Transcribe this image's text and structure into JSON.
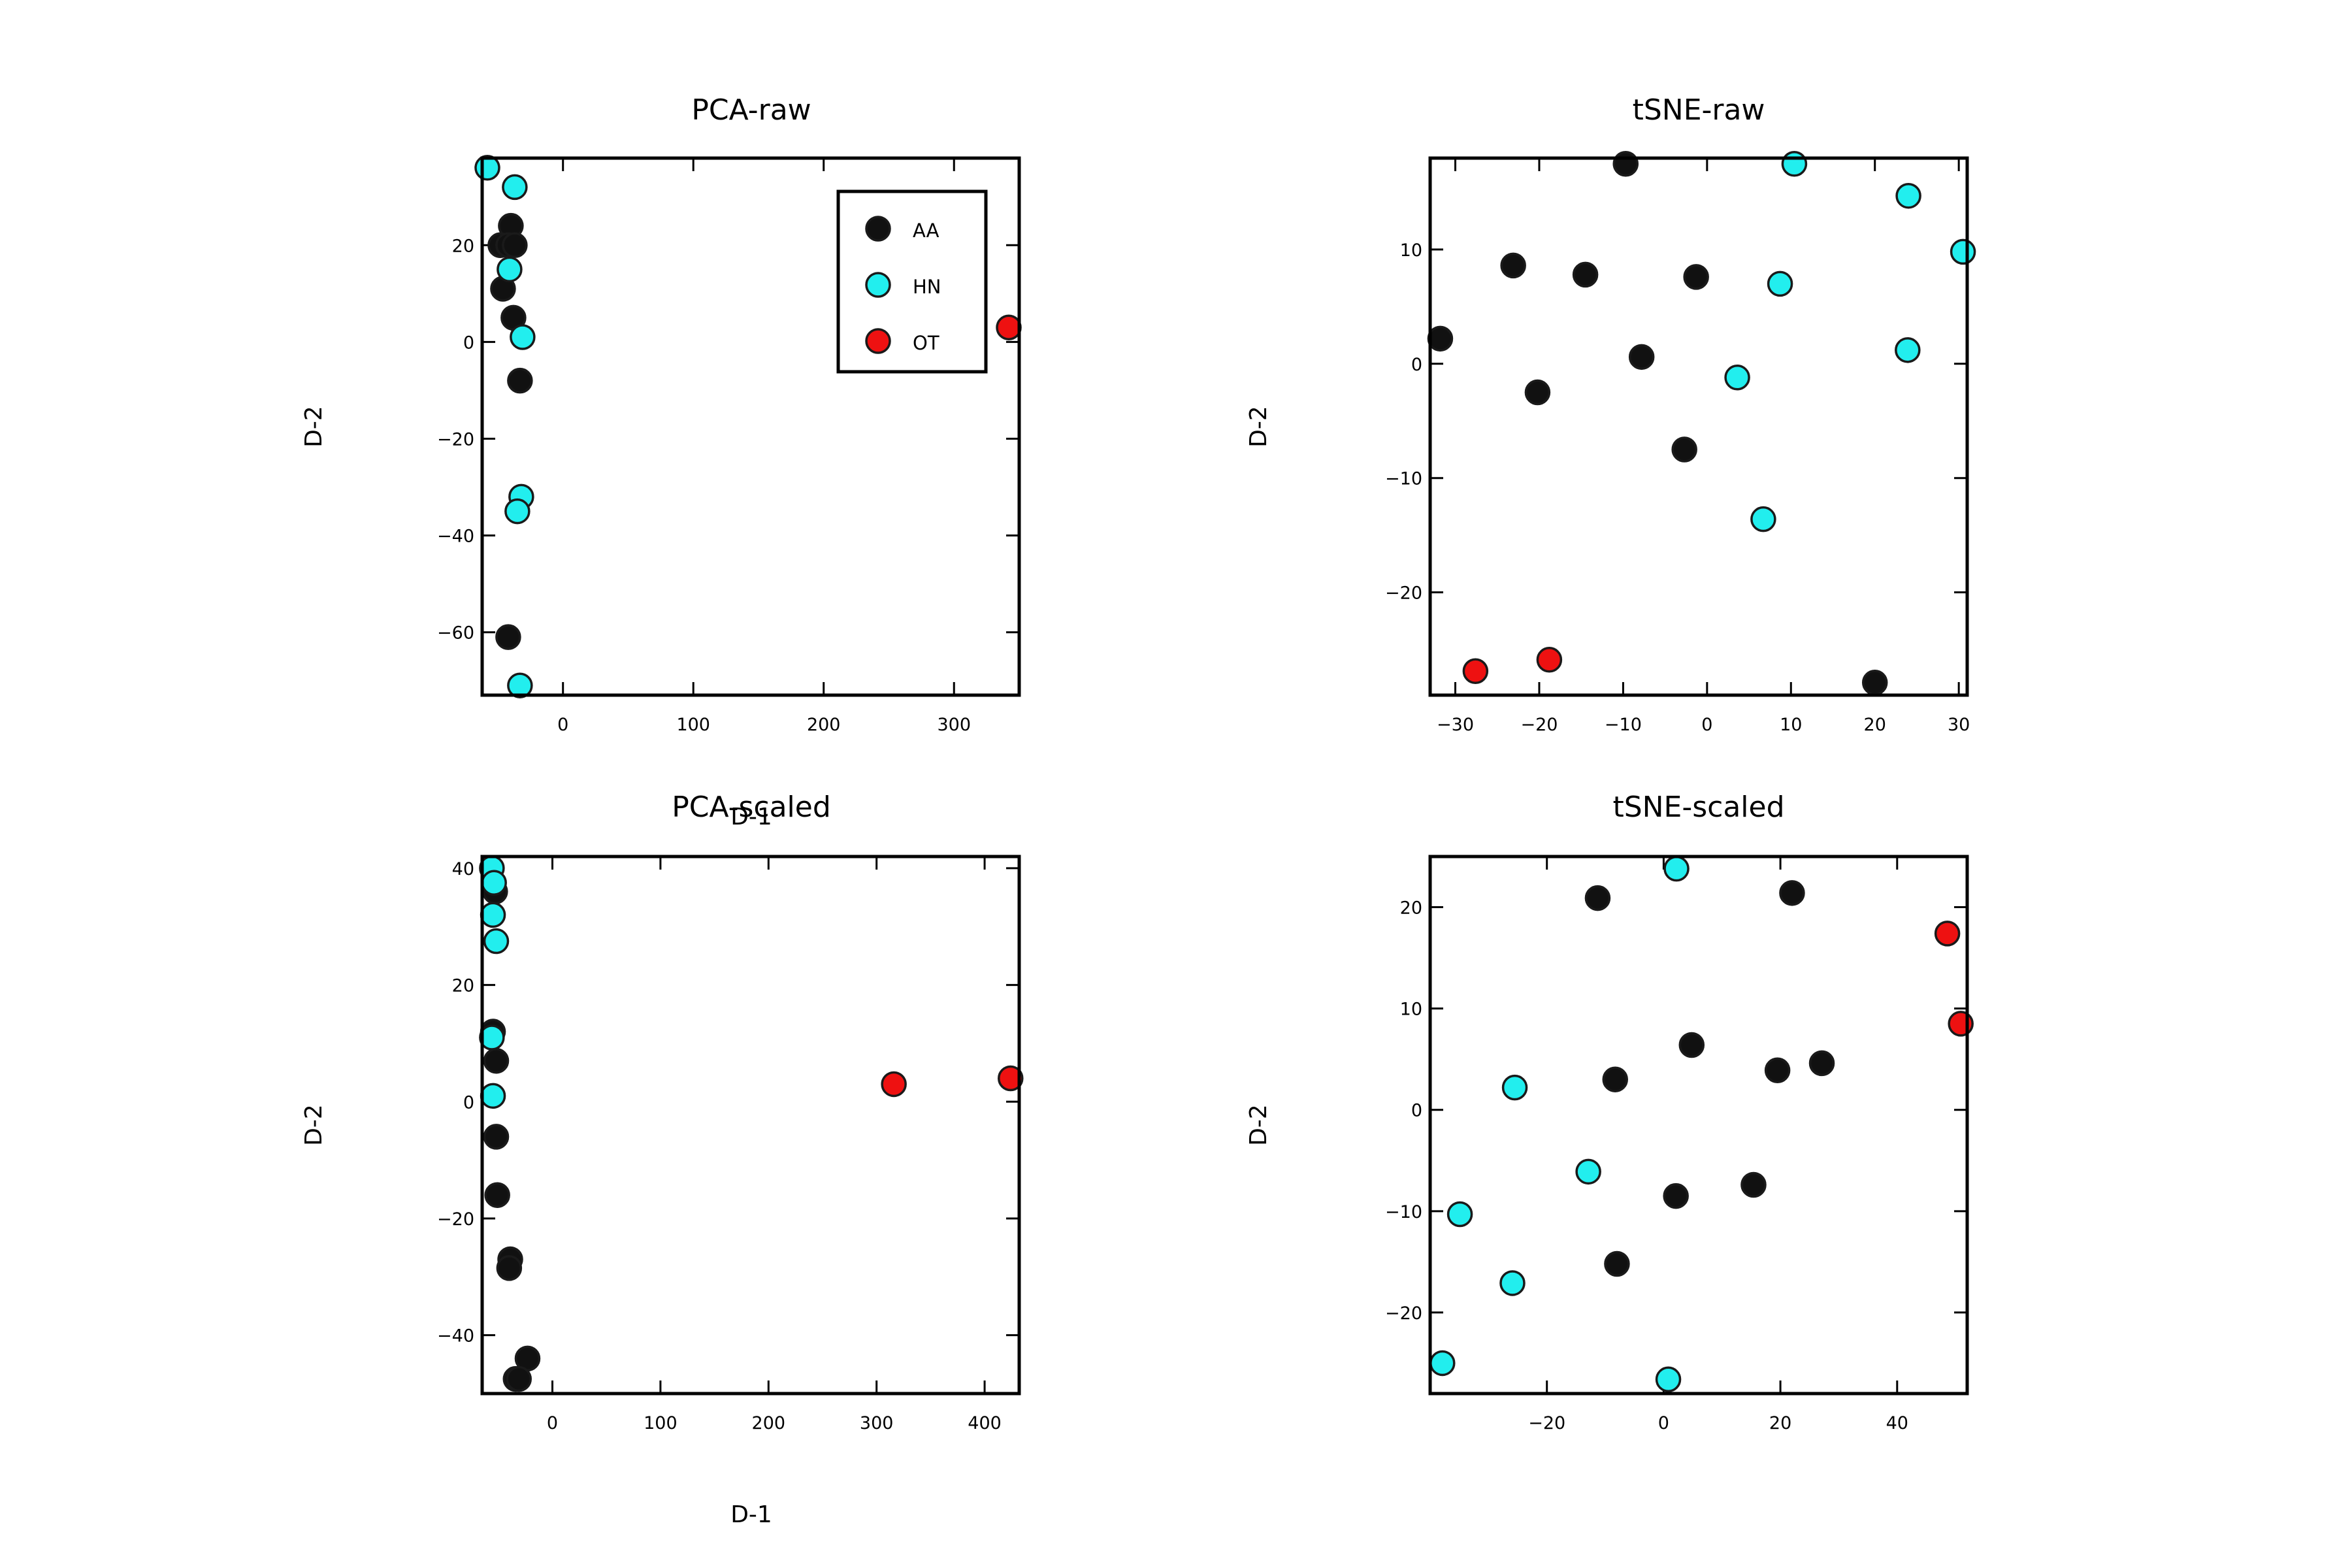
{
  "colors": {
    "AA": "#111111",
    "HN": "#22eeee",
    "OT": "#ee1111",
    "edge": "#1a1a1a"
  },
  "legend": {
    "entries": [
      "AA",
      "HN",
      "OT"
    ],
    "placement": "upper-right of PCA-raw"
  },
  "chart_data": [
    {
      "id": "pca-raw",
      "type": "scatter",
      "title": "PCA-raw",
      "xlabel": "D-1",
      "ylabel": "D-2",
      "xlim": [
        -62,
        350
      ],
      "ylim": [
        -73,
        38
      ],
      "xticks": [
        0,
        100,
        200,
        300
      ],
      "yticks": [
        -60,
        -40,
        -20,
        0,
        20
      ],
      "xtick_labels": [
        "0",
        "100",
        "200",
        "300"
      ],
      "ytick_labels": [
        "−60",
        "−40",
        "−20",
        "0",
        "20"
      ],
      "series": [
        {
          "name": "AA",
          "points": [
            [
              -40,
              24
            ],
            [
              -48,
              20
            ],
            [
              -42,
              20
            ],
            [
              -37,
              20
            ],
            [
              -46,
              11
            ],
            [
              -38,
              5
            ],
            [
              -33,
              -8
            ],
            [
              -42,
              -61
            ]
          ]
        },
        {
          "name": "HN",
          "points": [
            [
              -58,
              36
            ],
            [
              -37,
              32
            ],
            [
              -41,
              15
            ],
            [
              -31,
              1
            ],
            [
              -32,
              -32
            ],
            [
              -35,
              -35
            ],
            [
              -33,
              -71
            ]
          ]
        },
        {
          "name": "OT",
          "points": [
            [
              342,
              3
            ]
          ]
        }
      ]
    },
    {
      "id": "tsne-raw",
      "type": "scatter",
      "title": "tSNE-raw",
      "xlabel": "",
      "ylabel": "D-2",
      "xlim": [
        -33,
        31
      ],
      "ylim": [
        -29,
        18
      ],
      "xticks": [
        -30,
        -20,
        -10,
        0,
        10,
        20,
        30
      ],
      "yticks": [
        -20,
        -10,
        0,
        10
      ],
      "xtick_labels": [
        "−30",
        "−20",
        "−10",
        "0",
        "10",
        "20",
        "30"
      ],
      "ytick_labels": [
        "−20",
        "−10",
        "0",
        "10"
      ],
      "series": [
        {
          "name": "AA",
          "points": [
            [
              -9.7,
              17.5
            ],
            [
              -23.1,
              8.6
            ],
            [
              -14.5,
              7.8
            ],
            [
              -1.3,
              7.6
            ],
            [
              -31.8,
              2.2
            ],
            [
              -7.8,
              0.6
            ],
            [
              -20.2,
              -2.5
            ],
            [
              -2.7,
              -7.5
            ],
            [
              20,
              -27.9
            ]
          ]
        },
        {
          "name": "HN",
          "points": [
            [
              10.4,
              17.5
            ],
            [
              24,
              14.7
            ],
            [
              30.5,
              9.8
            ],
            [
              8.7,
              7
            ],
            [
              3.6,
              -1.2
            ],
            [
              23.9,
              1.2
            ],
            [
              6.7,
              -13.6
            ]
          ]
        },
        {
          "name": "OT",
          "points": [
            [
              -27.6,
              -26.9
            ],
            [
              -18.8,
              -25.9
            ]
          ]
        }
      ]
    },
    {
      "id": "pca-scaled",
      "type": "scatter",
      "title": "PCA-scaled",
      "xlabel": "D-1",
      "ylabel": "D-2",
      "xlim": [
        -65,
        432
      ],
      "ylim": [
        -50,
        42
      ],
      "xticks": [
        0,
        100,
        200,
        300,
        400
      ],
      "yticks": [
        -40,
        -20,
        0,
        20,
        40
      ],
      "xtick_labels": [
        "0",
        "100",
        "200",
        "300",
        "400"
      ],
      "ytick_labels": [
        "−40",
        "−20",
        "0",
        "20",
        "40"
      ],
      "series": [
        {
          "name": "AA",
          "points": [
            [
              -53,
              36
            ],
            [
              -55,
              12
            ],
            [
              -52,
              7
            ],
            [
              -52,
              -6
            ],
            [
              -51,
              -16
            ],
            [
              -39,
              -27
            ],
            [
              -40,
              -28.5
            ],
            [
              -23,
              -44
            ],
            [
              -34,
              -47.5
            ],
            [
              -31,
              -47.5
            ]
          ]
        },
        {
          "name": "HN",
          "points": [
            [
              -56,
              40
            ],
            [
              -54,
              37.5
            ],
            [
              -55,
              32
            ],
            [
              -52,
              27.5
            ],
            [
              -56,
              11
            ],
            [
              -55,
              1
            ]
          ]
        },
        {
          "name": "OT",
          "points": [
            [
              316,
              3
            ],
            [
              424,
              4
            ]
          ]
        }
      ]
    },
    {
      "id": "tsne-scaled",
      "type": "scatter",
      "title": "tSNE-scaled",
      "xlabel": "",
      "ylabel": "D-2",
      "xlim": [
        -40,
        52
      ],
      "ylim": [
        -28,
        25
      ],
      "xticks": [
        -20,
        0,
        20,
        40
      ],
      "yticks": [
        -20,
        -10,
        0,
        10,
        20
      ],
      "xtick_labels": [
        "−20",
        "0",
        "20",
        "40"
      ],
      "ytick_labels": [
        "−20",
        "−10",
        "0",
        "10",
        "20"
      ],
      "series": [
        {
          "name": "AA",
          "points": [
            [
              -11.3,
              20.9
            ],
            [
              22,
              21.4
            ],
            [
              4.8,
              6.4
            ],
            [
              -8.3,
              3
            ],
            [
              19.5,
              3.9
            ],
            [
              27.1,
              4.6
            ],
            [
              2.1,
              -8.5
            ],
            [
              15.4,
              -7.4
            ],
            [
              -8,
              -15.2
            ]
          ]
        },
        {
          "name": "HN",
          "points": [
            [
              2.2,
              23.8
            ],
            [
              -25.5,
              2.2
            ],
            [
              -12.9,
              -6.1
            ],
            [
              -34.9,
              -10.3
            ],
            [
              -25.9,
              -17.1
            ],
            [
              -37.9,
              -25
            ],
            [
              0.8,
              -26.6
            ]
          ]
        },
        {
          "name": "OT",
          "points": [
            [
              48.6,
              17.4
            ],
            [
              50.9,
              8.5
            ]
          ]
        }
      ]
    }
  ]
}
